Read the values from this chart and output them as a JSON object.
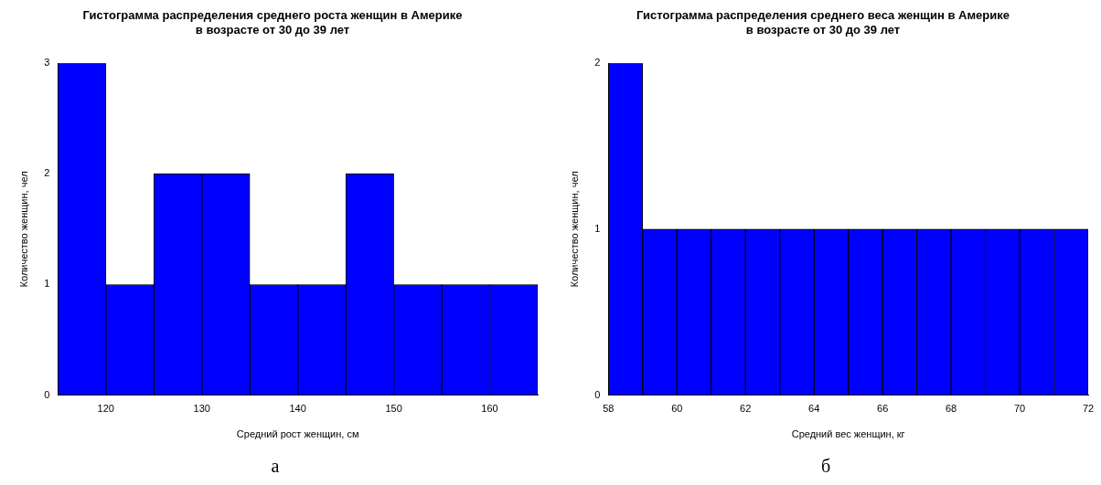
{
  "chart_data": [
    {
      "type": "histogram",
      "title": "Гистограмма распределения среднего роста женщин в Америке\nв возрасте от 30 до 39 лет",
      "xlabel": "Средний рост женщин, см",
      "ylabel": "Количество женщин, чел",
      "bins": [
        115,
        120,
        125,
        130,
        135,
        140,
        145,
        150,
        155,
        160,
        165
      ],
      "values": [
        3,
        1,
        2,
        2,
        1,
        1,
        2,
        1,
        1,
        1
      ],
      "color": "#0000ff",
      "xlim": [
        115,
        165
      ],
      "xticks": [
        120,
        130,
        140,
        150,
        160
      ],
      "ylim": [
        0,
        3
      ],
      "yticks": [
        0,
        1,
        2,
        3
      ],
      "annotations": [
        "а"
      ]
    },
    {
      "type": "histogram",
      "title": "Гистограмма распределения среднего веса женщин в Америке\nв возрасте от 30 до 39 лет",
      "xlabel": "Средний вес женщин, кг",
      "ylabel": "Количество женщин, чел",
      "bins": [
        58,
        59,
        60,
        61,
        62,
        63,
        64,
        65,
        66,
        67,
        68,
        69,
        70,
        71,
        72
      ],
      "values": [
        2,
        1,
        1,
        1,
        1,
        1,
        1,
        1,
        1,
        1,
        1,
        1,
        1,
        1
      ],
      "color": "#0000ff",
      "xlim": [
        58,
        72
      ],
      "xticks": [
        58,
        60,
        62,
        64,
        66,
        68,
        70,
        72
      ],
      "ylim": [
        0,
        2
      ],
      "yticks": [
        0,
        1,
        2
      ],
      "annotations": [
        "б"
      ]
    }
  ]
}
